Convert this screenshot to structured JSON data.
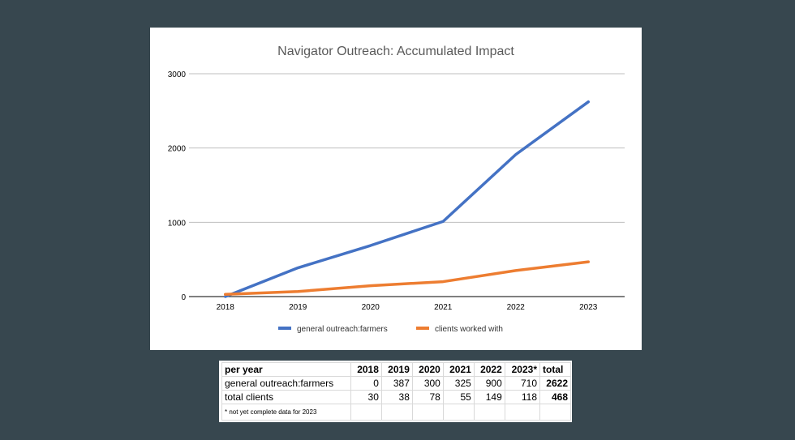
{
  "chart_data": {
    "type": "line",
    "title": "Navigator Outreach: Accumulated Impact",
    "xlabel": "",
    "ylabel": "",
    "categories": [
      "2018",
      "2019",
      "2020",
      "2021",
      "2022",
      "2023"
    ],
    "ylim": [
      0,
      3000
    ],
    "yticks": [
      0,
      1000,
      2000,
      3000
    ],
    "grid": true,
    "legend_position": "bottom",
    "series": [
      {
        "name": "general outreach:farmers",
        "color": "#4472c4",
        "values": [
          0,
          387,
          687,
          1012,
          1912,
          2622
        ]
      },
      {
        "name": "clients worked with",
        "color": "#ed7d31",
        "values": [
          30,
          68,
          146,
          201,
          350,
          468
        ]
      }
    ]
  },
  "table": {
    "header": [
      "per year",
      "2018",
      "2019",
      "2020",
      "2021",
      "2022",
      "2023*",
      "total"
    ],
    "rows": [
      {
        "label": "general outreach:farmers",
        "values": [
          "0",
          "387",
          "300",
          "325",
          "900",
          "710"
        ],
        "total": "2622"
      },
      {
        "label": "total clients",
        "values": [
          "30",
          "38",
          "78",
          "55",
          "149",
          "118"
        ],
        "total": "468"
      }
    ],
    "footnote": "* not yet complete data for 2023"
  }
}
